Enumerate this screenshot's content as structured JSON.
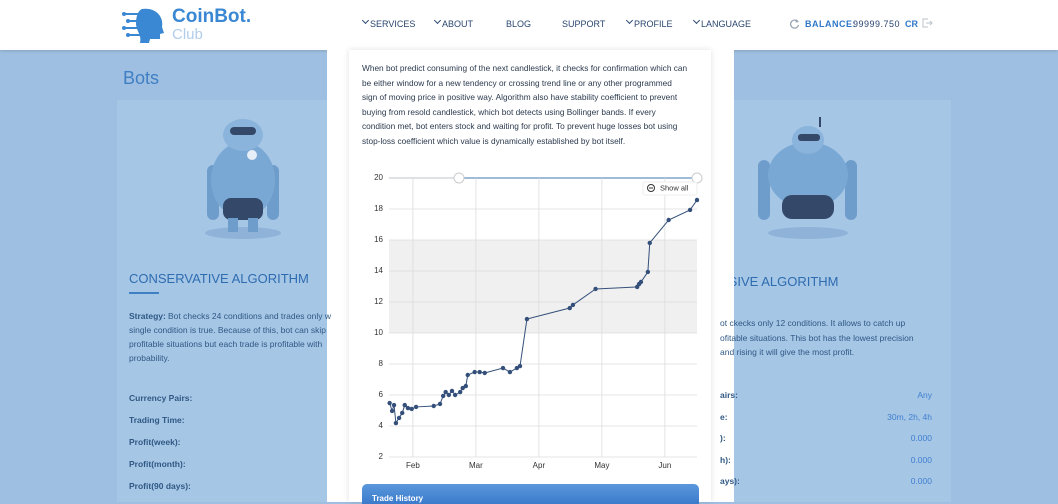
{
  "header": {
    "logo_title": "CoinBot.",
    "logo_sub": "Club",
    "nav": [
      "SERVICES",
      "ABOUT",
      "BLOG",
      "SUPPORT",
      "PROFILE",
      "LANGUAGE"
    ],
    "balance_label": "BALANCE:",
    "balance_value": "99999.750",
    "balance_unit": "CR"
  },
  "page_title": "Bots",
  "left_card": {
    "title": "CONSERVATIVE ALGORITHM",
    "strategy_label": "Strategy:",
    "strategy_lines": [
      "Bot checks 24 conditions and trades only w",
      "single condition is true. Because of this, bot can skip",
      "profitable situations but each trade is profitable with",
      "probability."
    ],
    "rows": [
      "Currency Pairs:",
      "Trading Time:",
      "Profit(week):",
      "Profit(month):",
      "Profit(90 days):"
    ]
  },
  "right_card": {
    "title": "SSIVE ALGORITHM",
    "lines": [
      "ot ckecks only 12 conditions. It allows to catch up",
      "ofitable situations. This bot has the lowest precision",
      "and rising it will give the most profit."
    ],
    "rows": [
      {
        "label": "airs:",
        "value": "Any"
      },
      {
        "label": "e:",
        "value": "30m, 2h, 4h"
      },
      {
        "label": "):",
        "value": "0.000"
      },
      {
        "label": "h):",
        "value": "0.000"
      },
      {
        "label": "ays):",
        "value": "0.000"
      }
    ]
  },
  "modal": {
    "lines": [
      "When bot predict consuming of the next candlestick, it checks for confirmation which can",
      "be either window for a new tendency or crossing trend line or any other programmed",
      "sign of moving price in positive way. Algorithm also have stability coefficient to prevent",
      "buying from resold candlestick, which bot detects using Bollinger bands. If every",
      "condition met, bot enters stock and waiting for profit. To prevent huge losses bot using",
      "stop-loss coefficient which value is dynamically established by bot itself."
    ],
    "show_all": "Show all",
    "trade_history": "Trade History"
  },
  "chart_data": {
    "type": "line",
    "x": [
      1.63,
      1.67,
      1.7,
      1.73,
      1.78,
      1.83,
      1.87,
      1.92,
      1.98,
      2.05,
      2.33,
      2.43,
      2.48,
      2.52,
      2.57,
      2.62,
      2.67,
      2.75,
      2.79,
      2.84,
      2.87,
      2.98,
      3.06,
      3.14,
      3.43,
      3.54,
      3.65,
      3.7,
      3.81,
      4.49,
      4.54,
      4.9,
      5.56,
      5.59,
      5.62,
      5.73,
      5.76,
      6.06,
      6.4,
      6.51
    ],
    "values": [
      5.48,
      4.97,
      5.35,
      4.19,
      4.52,
      4.84,
      5.35,
      5.16,
      5.1,
      5.23,
      5.29,
      5.42,
      5.94,
      6.19,
      6.0,
      6.26,
      6.0,
      6.19,
      6.45,
      6.58,
      7.29,
      7.48,
      7.48,
      7.42,
      7.74,
      7.48,
      7.74,
      7.87,
      10.9,
      11.61,
      11.81,
      12.84,
      12.97,
      13.16,
      13.29,
      13.94,
      15.81,
      17.29,
      17.94,
      18.58
    ],
    "color": "#34507a",
    "xlim": [
      1.62,
      6.51
    ],
    "xticks": [
      {
        "value": 2,
        "label": "Feb"
      },
      {
        "value": 3,
        "label": "Mar"
      },
      {
        "value": 4,
        "label": "Apr"
      },
      {
        "value": 5,
        "label": "May"
      },
      {
        "value": 6,
        "label": "Jun"
      }
    ],
    "ylim": [
      2,
      20
    ],
    "yticks": [
      2,
      4,
      6,
      8,
      10,
      12,
      14,
      16,
      18,
      20
    ],
    "band": [
      10,
      16
    ],
    "grid": true
  }
}
